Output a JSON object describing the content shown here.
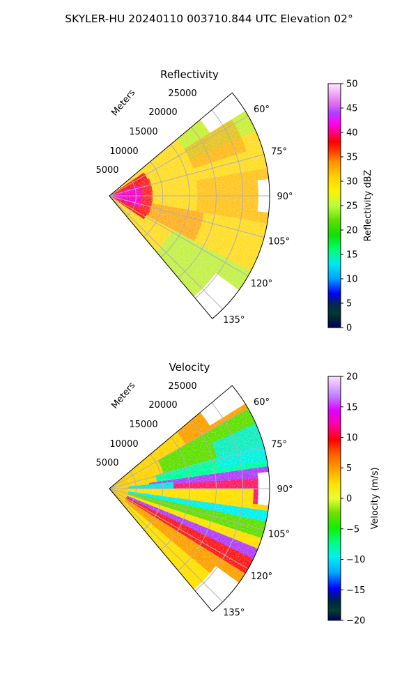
{
  "figure": {
    "suptitle": "SKYLER-HU  20240110  003710.844 UTC Elevation 02°"
  },
  "chart_data": [
    {
      "type": "heatmap",
      "title": "Reflectivity",
      "range_label": "Meters",
      "range_ticks": [
        "5000",
        "10000",
        "15000",
        "20000",
        "25000"
      ],
      "azimuth_ticks": [
        "60°",
        "75°",
        "90°",
        "105°",
        "120°",
        "135°"
      ],
      "azimuth_range": [
        50,
        140
      ],
      "range_max": 30000,
      "colorbar": {
        "label": "Reflectivity dBZ",
        "ticks": [
          "0",
          "5",
          "10",
          "15",
          "20",
          "25",
          "30",
          "35",
          "40",
          "45",
          "50"
        ],
        "range": [
          0,
          50
        ]
      }
    },
    {
      "type": "heatmap",
      "title": "Velocity",
      "range_label": "Meters",
      "range_ticks": [
        "5000",
        "10000",
        "15000",
        "20000",
        "25000"
      ],
      "azimuth_ticks": [
        "60°",
        "75°",
        "90°",
        "105°",
        "120°",
        "135°"
      ],
      "azimuth_range": [
        50,
        140
      ],
      "range_max": 30000,
      "colorbar": {
        "label": "Velocity (m/s)",
        "ticks": [
          "−20",
          "−15",
          "−10",
          "−5",
          "0",
          "5",
          "10",
          "15",
          "20"
        ],
        "range": [
          -20,
          20
        ]
      }
    }
  ],
  "colors": {
    "grid": "#b0b0b0",
    "frame": "#000000"
  }
}
